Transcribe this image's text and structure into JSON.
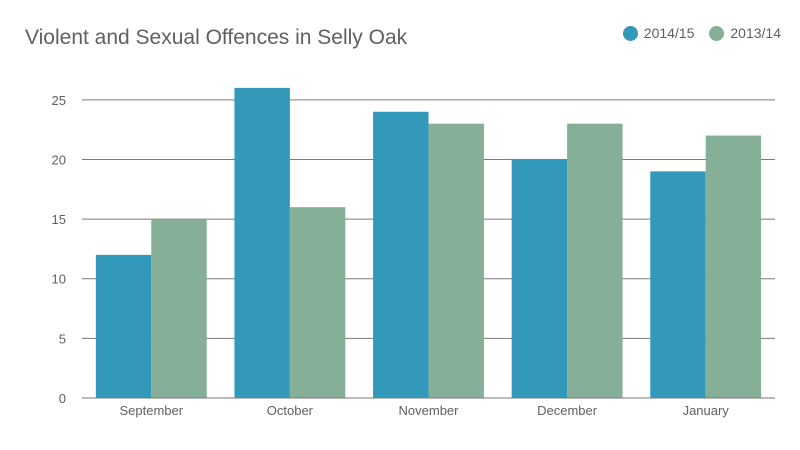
{
  "chart_data": {
    "type": "bar",
    "title": "Violent and Sexual Offences in Selly Oak",
    "xlabel": "",
    "ylabel": "",
    "categories": [
      "September",
      "October",
      "November",
      "December",
      "January"
    ],
    "series": [
      {
        "name": "2014/15",
        "color": "#3399bb",
        "values": [
          12,
          26,
          24,
          20,
          19
        ]
      },
      {
        "name": "2013/14",
        "color": "#85af97",
        "values": [
          15,
          16,
          23,
          23,
          22
        ]
      }
    ],
    "ylim": [
      0,
      27.5
    ],
    "yticks": [
      0,
      5,
      10,
      15,
      20,
      25
    ],
    "grid": true,
    "legend_position": "top-right"
  }
}
